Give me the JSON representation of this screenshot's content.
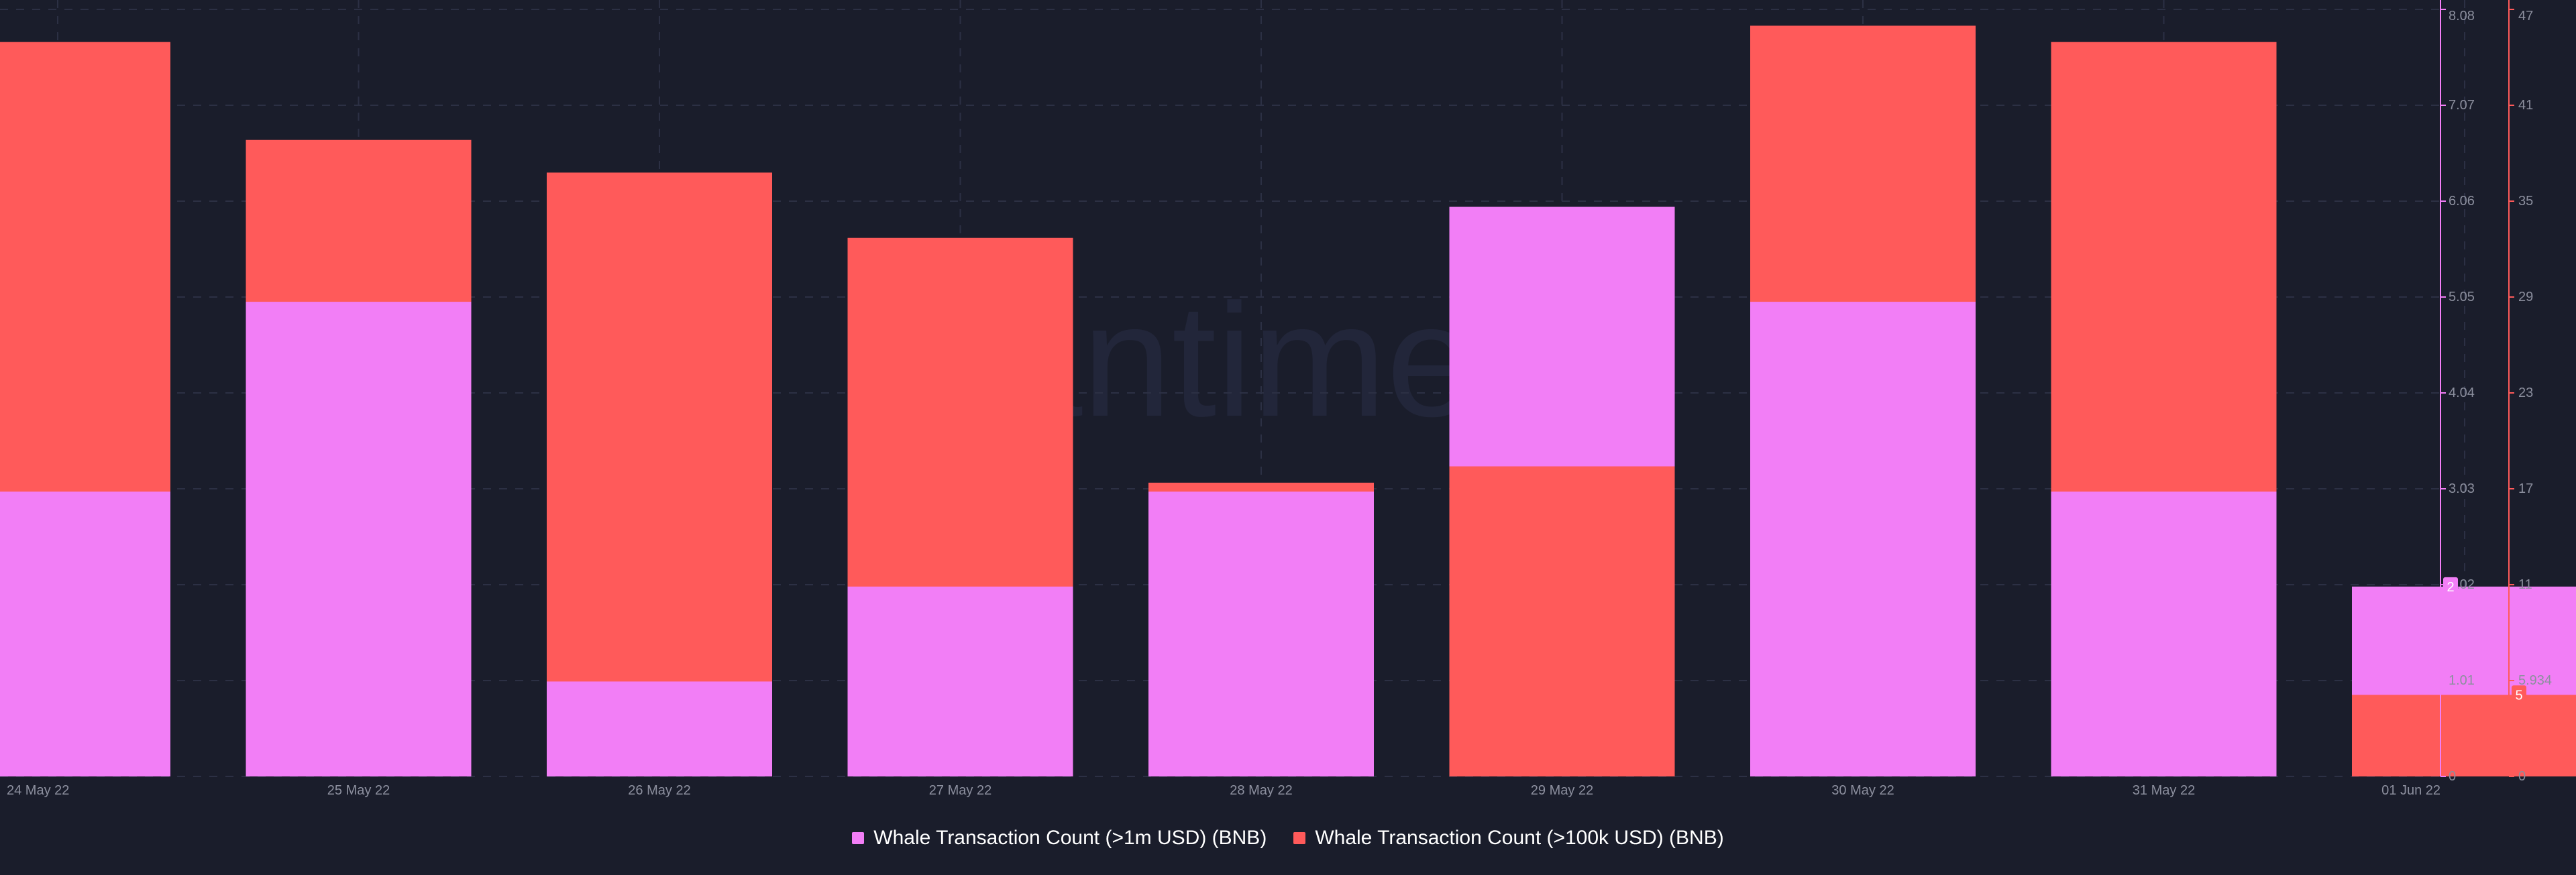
{
  "watermark": "santiment",
  "colors": {
    "background": "#1a1d2b",
    "grid": "#2c3044",
    "axis_text": "#8c8f9e",
    "series_1m": "#f27ef6",
    "series_100k": "#ff5a5a"
  },
  "chart_data": {
    "type": "bar",
    "stacked": true,
    "categories": [
      "24 May 22",
      "25 May 22",
      "26 May 22",
      "27 May 22",
      "28 May 22",
      "29 May 22",
      "30 May 22",
      "31 May 22",
      "01 Jun 22"
    ],
    "series": [
      {
        "name": "Whale Transaction Count (>1m USD) (BNB)",
        "axis": "left",
        "values": [
          3,
          5,
          1,
          2,
          3,
          6,
          5,
          3,
          2
        ]
      },
      {
        "name": "Whale Transaction Count (>100k USD) (BNB)",
        "axis": "right",
        "values": [
          45,
          39,
          37,
          33,
          18,
          19,
          46,
          45,
          5
        ]
      }
    ],
    "left_axis": {
      "range": [
        0,
        8.08
      ],
      "ticks": [
        "0",
        "1.01",
        "2.02",
        "3.03",
        "4.04",
        "5.05",
        "6.06",
        "7.07",
        "8.08"
      ],
      "current_value_label": "2"
    },
    "right_axis": {
      "range": [
        0,
        47
      ],
      "ticks": [
        "0",
        "5.934",
        "11",
        "17",
        "23",
        "29",
        "35",
        "41",
        "47"
      ],
      "current_value_label": "5"
    },
    "grid": true,
    "legend_position": "bottom-center"
  }
}
